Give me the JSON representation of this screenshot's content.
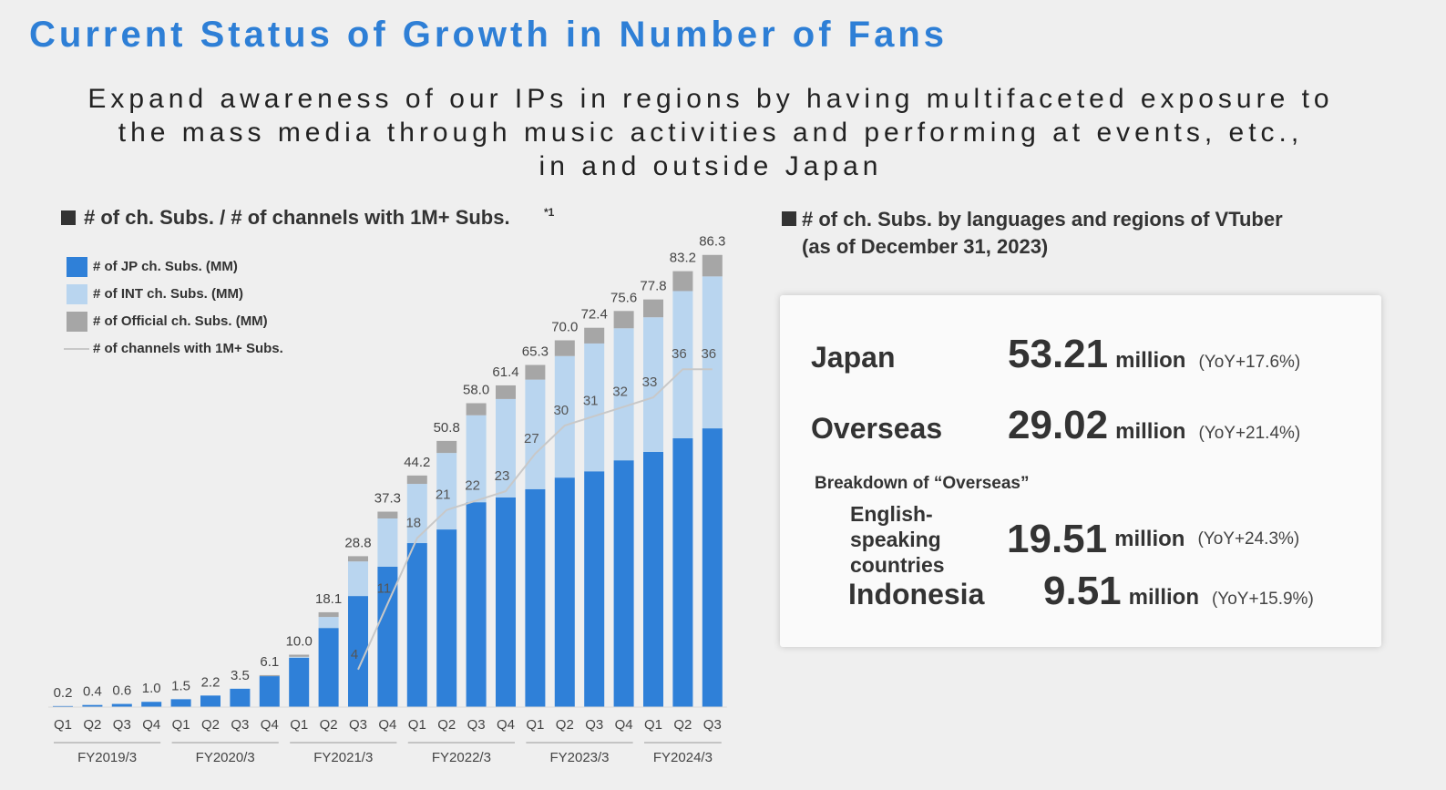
{
  "header": {
    "title": "Current Status of Growth in Number of Fans",
    "subtitle": [
      "Expand awareness of our IPs in regions by having multifaceted exposure to",
      "the mass media through music activities and performing at events, etc.,",
      "in and outside Japan"
    ]
  },
  "chart_data": {
    "type": "bar",
    "stacked": true,
    "title": "# of ch. Subs. / # of channels with 1M+ Subs.",
    "title_note": "*1",
    "categories": [
      "Q1",
      "Q2",
      "Q3",
      "Q4",
      "Q1",
      "Q2",
      "Q3",
      "Q4",
      "Q1",
      "Q2",
      "Q3",
      "Q4",
      "Q1",
      "Q2",
      "Q3",
      "Q4",
      "Q1",
      "Q2",
      "Q3",
      "Q4",
      "Q1",
      "Q2",
      "Q3"
    ],
    "groups": [
      "FY2019/3",
      "FY2020/3",
      "FY2021/3",
      "FY2022/3",
      "FY2023/3",
      "FY2024/3"
    ],
    "series": [
      {
        "name": "# of JP ch. Subs. (MM)",
        "color": "#2f80d8",
        "values": [
          0.2,
          0.4,
          0.6,
          1.0,
          1.5,
          2.2,
          3.5,
          5.9,
          9.4,
          15.1,
          21.2,
          26.8,
          31.3,
          33.9,
          39.1,
          40.0,
          41.6,
          43.8,
          45.0,
          47.1,
          48.7,
          51.3,
          53.2
        ]
      },
      {
        "name": "# of INT ch. Subs. (MM)",
        "color": "#b9d5ef",
        "values": [
          0,
          0,
          0,
          0,
          0,
          0,
          0,
          0,
          0.2,
          2.1,
          6.6,
          9.2,
          11.3,
          14.6,
          16.6,
          18.8,
          20.9,
          23.2,
          24.4,
          25.2,
          25.7,
          28.1,
          29.0
        ]
      },
      {
        "name": "# of Official ch. Subs. (MM)",
        "color": "#a6a6a6",
        "values": [
          0,
          0,
          0,
          0,
          0,
          0,
          0,
          0.2,
          0.4,
          0.9,
          1.0,
          1.3,
          1.6,
          2.3,
          2.3,
          2.6,
          2.8,
          3.0,
          3.0,
          3.3,
          3.4,
          3.8,
          4.1
        ]
      }
    ],
    "totals": [
      0.2,
      0.4,
      0.6,
      1.0,
      1.5,
      2.2,
      3.5,
      6.1,
      10.0,
      18.1,
      28.8,
      37.3,
      44.2,
      50.8,
      58.0,
      61.4,
      65.3,
      70.0,
      72.4,
      75.6,
      77.8,
      83.2,
      86.3
    ],
    "totals_labels": [
      "0.2",
      "0.4",
      "0.6",
      "1.0",
      "1.5",
      "2.2",
      "3.5",
      "6.1",
      "10.0",
      "18.1",
      "28.8",
      "37.3",
      "44.2",
      "50.8",
      "58.0",
      "61.4",
      "65.3",
      "70.0",
      "72.4",
      "75.6",
      "77.8",
      "83.2",
      "86.3"
    ],
    "line": {
      "type": "line",
      "name": "# of channels with 1M+ Subs.",
      "color": "#c8c8c8",
      "values": [
        null,
        null,
        null,
        null,
        null,
        null,
        null,
        null,
        null,
        null,
        4,
        11,
        18,
        21,
        22,
        23,
        27,
        30,
        31,
        32,
        33,
        36,
        36
      ]
    }
  },
  "panel": {
    "title": [
      "# of ch. Subs. by languages and regions of VTuber",
      "(as of December 31, 2023)"
    ],
    "rows": [
      {
        "label": "Japan",
        "value": "53.21",
        "unit": "million",
        "yoy": "(YoY+17.6%)"
      },
      {
        "label": "Overseas",
        "value": "29.02",
        "unit": "million",
        "yoy": "(YoY+21.4%)"
      }
    ],
    "breakdown_title": "Breakdown of “Overseas”",
    "breakdown_rows": [
      {
        "label": "English-speaking countries",
        "value": "19.51",
        "unit": "million",
        "yoy": "(YoY+24.3%)"
      },
      {
        "label": "Indonesia",
        "value": "9.51",
        "unit": "million",
        "yoy": "(YoY+15.9%)"
      }
    ]
  }
}
